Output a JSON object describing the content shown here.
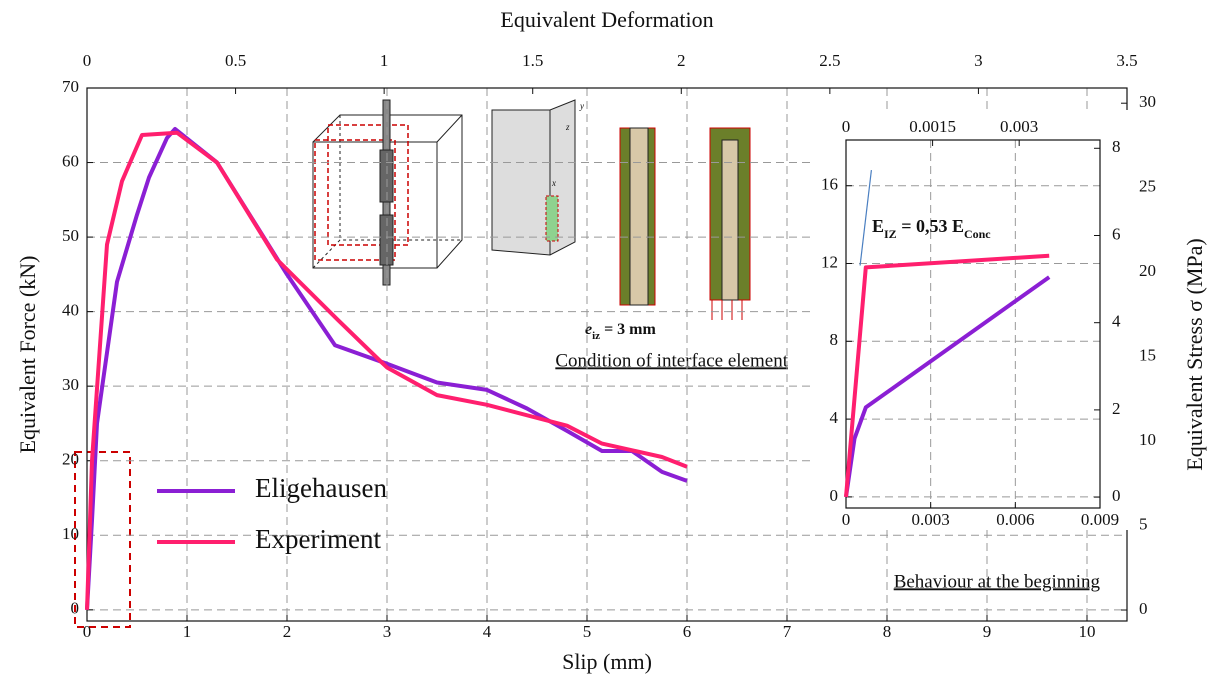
{
  "chart_data": [
    {
      "type": "line",
      "x2_label": "Equivalent Deformation",
      "x_label": "Slip (mm)",
      "y_label": "Equivalent Force (kN)",
      "y2_label": "Equivalent Stress σ (MPa)",
      "xlim": [
        0,
        10.4
      ],
      "xticks": [
        0,
        1,
        2,
        3,
        4,
        5,
        6,
        7,
        8,
        9,
        10
      ],
      "x2lim": [
        0,
        3.5
      ],
      "x2ticks": [
        0,
        0.5,
        1,
        1.5,
        2,
        2.5,
        3,
        3.5
      ],
      "ylim": [
        -1.5,
        70
      ],
      "yticks": [
        0,
        10,
        20,
        30,
        40,
        50,
        60,
        70
      ],
      "y2lim": [
        -0.65,
        30.9
      ],
      "y2ticks": [
        0,
        5,
        10,
        15,
        20,
        25,
        30
      ],
      "grid": true,
      "legend": "lower left",
      "series": [
        {
          "name": "Eligehausen",
          "color": "#8b1fd4",
          "x": [
            0,
            0.05,
            0.1,
            0.3,
            0.5,
            0.62,
            0.8,
            0.88,
            1.3,
            2,
            2.48,
            3,
            3.5,
            4,
            4.4,
            4.8,
            5.15,
            5.45,
            5.75,
            6
          ],
          "values": [
            0,
            12,
            25,
            44,
            53,
            58,
            63.3,
            64.5,
            60,
            45,
            35.5,
            33,
            30.5,
            29.5,
            27,
            24,
            21.3,
            21.3,
            18.5,
            17.3
          ]
        },
        {
          "name": "Experiment",
          "color": "#ff1f6e",
          "x": [
            0,
            0.05,
            0.2,
            0.35,
            0.55,
            0.9,
            1.3,
            1.9,
            2.5,
            3,
            3.5,
            4,
            4.8,
            5.15,
            5.75,
            6
          ],
          "values": [
            0,
            20,
            49,
            57.5,
            63.7,
            64,
            60,
            47,
            39,
            32.5,
            28.8,
            27.5,
            24.7,
            22.3,
            20.5,
            19.2
          ]
        }
      ],
      "caption": "Condition of interface element",
      "thickness_label": [
        "e",
        "iz",
        " = 3 mm"
      ],
      "axis_names": [
        "z",
        "y",
        "x"
      ]
    },
    {
      "type": "line",
      "caption": "Behaviour at the beginning",
      "modulus_label": [
        "E",
        "IZ",
        " = 0,53 E",
        "Conc"
      ],
      "xlim": [
        0,
        0.009
      ],
      "xticks": [
        0,
        0.003,
        0.006,
        0.009
      ],
      "x2lim": [
        0,
        0.0044
      ],
      "x2ticks": [
        0,
        0.0015,
        0.003
      ],
      "ylim": [
        -0.57,
        18.35
      ],
      "yticks": [
        0,
        4,
        8,
        12,
        16
      ],
      "y2lim": [
        -0.25,
        8.19
      ],
      "y2ticks": [
        0,
        2,
        4,
        6,
        8
      ],
      "grid": true,
      "series": [
        {
          "name": "Eligehausen",
          "color": "#8b1fd4",
          "x": [
            0,
            0.0003,
            0.0007,
            0.0072
          ],
          "values": [
            0,
            3,
            4.6,
            11.3
          ]
        },
        {
          "name": "Experiment",
          "color": "#ff1f6e",
          "x": [
            0,
            0.0007,
            0.0072
          ],
          "values": [
            0,
            11.8,
            12.4
          ]
        },
        {
          "color": "#4a7fc1",
          "x": [
            0.0005,
            0.0009
          ],
          "values": [
            11.9,
            16.8
          ]
        }
      ]
    }
  ]
}
